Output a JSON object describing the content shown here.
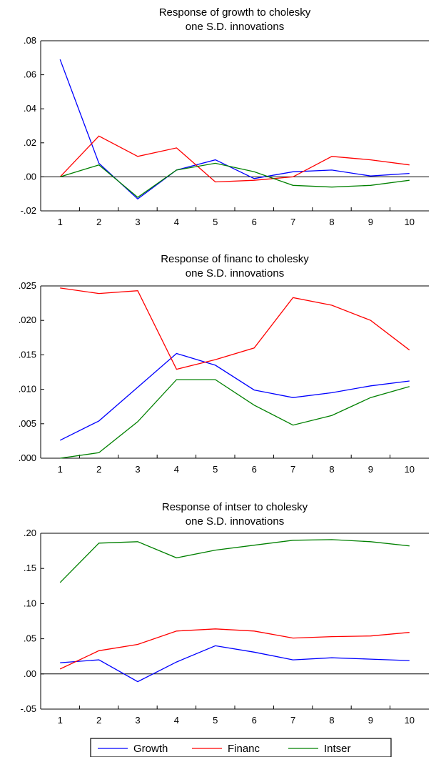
{
  "chart_data": [
    {
      "type": "line",
      "title": "Response of growth to cholesky",
      "subtitle": "one S.D. innovations",
      "x": [
        "1",
        "2",
        "3",
        "4",
        "5",
        "6",
        "7",
        "8",
        "9",
        "10"
      ],
      "ylim": [
        -0.02,
        0.08
      ],
      "yticks": [
        -0.02,
        0.0,
        0.02,
        0.04,
        0.06,
        0.08
      ],
      "ytick_labels": [
        "-.02",
        ".00",
        ".02",
        ".04",
        ".06",
        ".08"
      ],
      "zero_line": true,
      "series": [
        {
          "name": "Growth",
          "color": "#0000ff",
          "values": [
            0.069,
            0.008,
            -0.013,
            0.004,
            0.01,
            -0.001,
            0.003,
            0.004,
            0.0005,
            0.002
          ]
        },
        {
          "name": "Financ",
          "color": "#ff0000",
          "values": [
            0.0,
            0.024,
            0.012,
            0.017,
            -0.003,
            -0.002,
            0.0,
            0.012,
            0.01,
            0.007
          ]
        },
        {
          "name": "Intser",
          "color": "#008000",
          "values": [
            0.0,
            0.007,
            -0.012,
            0.004,
            0.008,
            0.003,
            -0.005,
            -0.006,
            -0.005,
            -0.002
          ]
        }
      ]
    },
    {
      "type": "line",
      "title": "Response of financ to cholesky",
      "subtitle": "one S.D. innovations",
      "x": [
        "1",
        "2",
        "3",
        "4",
        "5",
        "6",
        "7",
        "8",
        "9",
        "10"
      ],
      "ylim": [
        0.0,
        0.025
      ],
      "yticks": [
        0.0,
        0.005,
        0.01,
        0.015,
        0.02,
        0.025
      ],
      "ytick_labels": [
        ".000",
        ".005",
        ".010",
        ".015",
        ".020",
        ".025"
      ],
      "zero_line": false,
      "series": [
        {
          "name": "Growth",
          "color": "#0000ff",
          "values": [
            0.0026,
            0.0054,
            0.0103,
            0.0152,
            0.0135,
            0.0099,
            0.0088,
            0.0095,
            0.0105,
            0.0112
          ]
        },
        {
          "name": "Financ",
          "color": "#ff0000",
          "values": [
            0.0247,
            0.0239,
            0.0243,
            0.0129,
            0.0143,
            0.016,
            0.0233,
            0.0222,
            0.02,
            0.0157
          ]
        },
        {
          "name": "Intser",
          "color": "#008000",
          "values": [
            0.0,
            0.0008,
            0.0053,
            0.0114,
            0.0114,
            0.0077,
            0.0048,
            0.0062,
            0.0088,
            0.0104
          ]
        }
      ]
    },
    {
      "type": "line",
      "title": "Response of intser to cholesky",
      "subtitle": "one S.D. innovations",
      "x": [
        "1",
        "2",
        "3",
        "4",
        "5",
        "6",
        "7",
        "8",
        "9",
        "10"
      ],
      "ylim": [
        -0.05,
        0.2
      ],
      "yticks": [
        -0.05,
        0.0,
        0.05,
        0.1,
        0.15,
        0.2
      ],
      "ytick_labels": [
        "-.05",
        ".00",
        ".05",
        ".10",
        ".15",
        ".20"
      ],
      "zero_line": true,
      "series": [
        {
          "name": "Growth",
          "color": "#0000ff",
          "values": [
            0.016,
            0.02,
            -0.011,
            0.017,
            0.04,
            0.031,
            0.02,
            0.023,
            0.021,
            0.019
          ]
        },
        {
          "name": "Financ",
          "color": "#ff0000",
          "values": [
            0.007,
            0.033,
            0.042,
            0.061,
            0.064,
            0.061,
            0.051,
            0.053,
            0.054,
            0.059
          ]
        },
        {
          "name": "Intser",
          "color": "#008000",
          "values": [
            0.13,
            0.186,
            0.188,
            0.165,
            0.176,
            0.183,
            0.19,
            0.191,
            0.188,
            0.182
          ]
        }
      ]
    }
  ],
  "legend": {
    "items": [
      {
        "label": "Growth",
        "color": "#0000ff"
      },
      {
        "label": "Financ",
        "color": "#ff0000"
      },
      {
        "label": "Intser",
        "color": "#008000"
      }
    ]
  }
}
